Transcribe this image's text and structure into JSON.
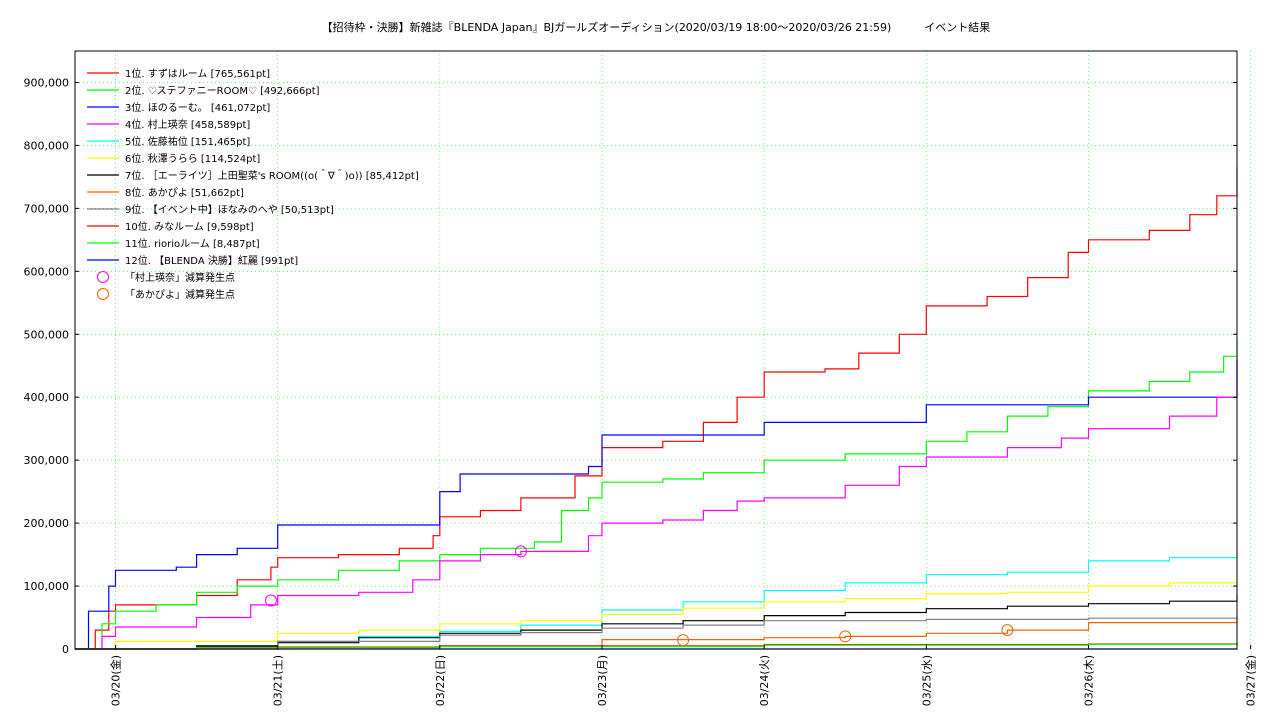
{
  "chart_data": {
    "type": "line",
    "title": "【招待枠・決勝】新雑誌『BLENDA Japan』BJガールズオーディション(2020/03/19 18:00〜2020/03/26 21:59)　　　イベント結果",
    "xlabel": "",
    "ylabel": "",
    "ylim": [
      0,
      950000
    ],
    "yticks": [
      0,
      100000,
      200000,
      300000,
      400000,
      500000,
      600000,
      700000,
      800000,
      900000
    ],
    "ytick_labels": [
      "0",
      "100,000",
      "200,000",
      "300,000",
      "400,000",
      "500,000",
      "600,000",
      "700,000",
      "800,000",
      "900,000"
    ],
    "xlim": [
      "2020-03-19 18:00",
      "2020-03-26 21:59"
    ],
    "xticks": [
      "2020-03-20 00:00",
      "2020-03-21 00:00",
      "2020-03-22 00:00",
      "2020-03-23 00:00",
      "2020-03-24 00:00",
      "2020-03-25 00:00",
      "2020-03-26 00:00",
      "2020-03-27 00:00"
    ],
    "xtick_labels": [
      "03/20(金)",
      "03/21(土)",
      "03/22(日)",
      "03/23(月)",
      "03/24(火)",
      "03/25(水)",
      "03/26(木)",
      "03/27(金)"
    ],
    "grid": true,
    "legend_position": "top-left",
    "series": [
      {
        "name": "1位. すずはルーム [765,561pt]",
        "color": "#ff0000",
        "points": [
          [
            "2020-03-19 18:00",
            0
          ],
          [
            "2020-03-19 21:00",
            30000
          ],
          [
            "2020-03-19 23:00",
            60000
          ],
          [
            "2020-03-20 00:00",
            70000
          ],
          [
            "2020-03-20 06:00",
            70000
          ],
          [
            "2020-03-20 12:00",
            85000
          ],
          [
            "2020-03-20 18:00",
            110000
          ],
          [
            "2020-03-20 23:00",
            130000
          ],
          [
            "2020-03-21 00:00",
            145000
          ],
          [
            "2020-03-21 09:00",
            150000
          ],
          [
            "2020-03-21 18:00",
            160000
          ],
          [
            "2020-03-21 23:00",
            180000
          ],
          [
            "2020-03-22 00:00",
            210000
          ],
          [
            "2020-03-22 06:00",
            220000
          ],
          [
            "2020-03-22 12:00",
            240000
          ],
          [
            "2020-03-22 20:00",
            275000
          ],
          [
            "2020-03-23 00:00",
            320000
          ],
          [
            "2020-03-23 09:00",
            330000
          ],
          [
            "2020-03-23 15:00",
            360000
          ],
          [
            "2020-03-23 20:00",
            400000
          ],
          [
            "2020-03-24 00:00",
            440000
          ],
          [
            "2020-03-24 09:00",
            445000
          ],
          [
            "2020-03-24 14:00",
            470000
          ],
          [
            "2020-03-24 20:00",
            500000
          ],
          [
            "2020-03-25 00:00",
            545000
          ],
          [
            "2020-03-25 09:00",
            560000
          ],
          [
            "2020-03-25 15:00",
            590000
          ],
          [
            "2020-03-25 21:00",
            630000
          ],
          [
            "2020-03-26 00:00",
            650000
          ],
          [
            "2020-03-26 09:00",
            665000
          ],
          [
            "2020-03-26 15:00",
            690000
          ],
          [
            "2020-03-26 19:00",
            720000
          ],
          [
            "2020-03-26 21:59",
            765561
          ]
        ]
      },
      {
        "name": "2位. ♡ステファニーROOM♡ [492,666pt]",
        "color": "#00ff00",
        "points": [
          [
            "2020-03-19 18:00",
            0
          ],
          [
            "2020-03-19 22:00",
            40000
          ],
          [
            "2020-03-20 00:00",
            60000
          ],
          [
            "2020-03-20 06:00",
            70000
          ],
          [
            "2020-03-20 12:00",
            90000
          ],
          [
            "2020-03-20 18:00",
            100000
          ],
          [
            "2020-03-21 00:00",
            110000
          ],
          [
            "2020-03-21 09:00",
            125000
          ],
          [
            "2020-03-21 18:00",
            140000
          ],
          [
            "2020-03-22 00:00",
            150000
          ],
          [
            "2020-03-22 06:00",
            160000
          ],
          [
            "2020-03-22 14:00",
            170000
          ],
          [
            "2020-03-22 18:00",
            220000
          ],
          [
            "2020-03-22 22:00",
            240000
          ],
          [
            "2020-03-23 00:00",
            265000
          ],
          [
            "2020-03-23 09:00",
            270000
          ],
          [
            "2020-03-23 15:00",
            280000
          ],
          [
            "2020-03-24 00:00",
            300000
          ],
          [
            "2020-03-24 12:00",
            310000
          ],
          [
            "2020-03-25 00:00",
            330000
          ],
          [
            "2020-03-25 06:00",
            345000
          ],
          [
            "2020-03-25 12:00",
            370000
          ],
          [
            "2020-03-25 18:00",
            385000
          ],
          [
            "2020-03-26 00:00",
            410000
          ],
          [
            "2020-03-26 09:00",
            425000
          ],
          [
            "2020-03-26 15:00",
            440000
          ],
          [
            "2020-03-26 20:00",
            465000
          ],
          [
            "2020-03-26 21:59",
            492666
          ]
        ]
      },
      {
        "name": "3位. ほのるーむ。 [461,072pt]",
        "color": "#0000ff",
        "points": [
          [
            "2020-03-19 18:00",
            0
          ],
          [
            "2020-03-19 20:00",
            60000
          ],
          [
            "2020-03-19 23:00",
            100000
          ],
          [
            "2020-03-20 00:00",
            125000
          ],
          [
            "2020-03-20 09:00",
            130000
          ],
          [
            "2020-03-20 12:00",
            150000
          ],
          [
            "2020-03-20 18:00",
            160000
          ],
          [
            "2020-03-21 00:00",
            197000
          ],
          [
            "2020-03-21 20:00",
            197000
          ],
          [
            "2020-03-22 00:00",
            250000
          ],
          [
            "2020-03-22 03:00",
            278000
          ],
          [
            "2020-03-22 22:00",
            290000
          ],
          [
            "2020-03-23 00:00",
            340000
          ],
          [
            "2020-03-23 20:00",
            340000
          ],
          [
            "2020-03-24 00:00",
            360000
          ],
          [
            "2020-03-24 20:00",
            360000
          ],
          [
            "2020-03-25 00:00",
            388000
          ],
          [
            "2020-03-25 22:00",
            388000
          ],
          [
            "2020-03-26 00:00",
            400000
          ],
          [
            "2020-03-26 21:00",
            400000
          ],
          [
            "2020-03-26 21:59",
            461072
          ]
        ]
      },
      {
        "name": "4位. 村上瑛奈 [458,589pt]",
        "color": "#ff00ff",
        "points": [
          [
            "2020-03-19 18:00",
            0
          ],
          [
            "2020-03-19 22:00",
            20000
          ],
          [
            "2020-03-20 00:00",
            35000
          ],
          [
            "2020-03-20 12:00",
            50000
          ],
          [
            "2020-03-20 20:00",
            70000
          ],
          [
            "2020-03-21 00:00",
            85000
          ],
          [
            "2020-03-21 12:00",
            90000
          ],
          [
            "2020-03-21 20:00",
            110000
          ],
          [
            "2020-03-22 00:00",
            140000
          ],
          [
            "2020-03-22 06:00",
            150000
          ],
          [
            "2020-03-22 12:00",
            155000
          ],
          [
            "2020-03-22 22:00",
            180000
          ],
          [
            "2020-03-23 00:00",
            200000
          ],
          [
            "2020-03-23 09:00",
            205000
          ],
          [
            "2020-03-23 15:00",
            220000
          ],
          [
            "2020-03-23 20:00",
            235000
          ],
          [
            "2020-03-24 00:00",
            240000
          ],
          [
            "2020-03-24 12:00",
            260000
          ],
          [
            "2020-03-24 20:00",
            290000
          ],
          [
            "2020-03-25 00:00",
            305000
          ],
          [
            "2020-03-25 12:00",
            320000
          ],
          [
            "2020-03-25 20:00",
            335000
          ],
          [
            "2020-03-26 00:00",
            350000
          ],
          [
            "2020-03-26 12:00",
            370000
          ],
          [
            "2020-03-26 19:00",
            400000
          ],
          [
            "2020-03-26 21:59",
            458589
          ]
        ]
      },
      {
        "name": "5位. 佐藤祐位 [151,465pt]",
        "color": "#00ffff",
        "points": [
          [
            "2020-03-19 18:00",
            0
          ],
          [
            "2020-03-20 12:00",
            5000
          ],
          [
            "2020-03-21 00:00",
            12000
          ],
          [
            "2020-03-21 12:00",
            20000
          ],
          [
            "2020-03-22 00:00",
            28000
          ],
          [
            "2020-03-22 12:00",
            38000
          ],
          [
            "2020-03-23 00:00",
            62000
          ],
          [
            "2020-03-23 12:00",
            75000
          ],
          [
            "2020-03-24 00:00",
            93000
          ],
          [
            "2020-03-24 12:00",
            105000
          ],
          [
            "2020-03-25 00:00",
            118000
          ],
          [
            "2020-03-25 12:00",
            122000
          ],
          [
            "2020-03-26 00:00",
            140000
          ],
          [
            "2020-03-26 12:00",
            145000
          ],
          [
            "2020-03-26 21:59",
            151465
          ]
        ]
      },
      {
        "name": "6位. 秋澤うらら [114,524pt]",
        "color": "#ffff00",
        "points": [
          [
            "2020-03-19 18:00",
            0
          ],
          [
            "2020-03-20 00:00",
            12000
          ],
          [
            "2020-03-21 00:00",
            25000
          ],
          [
            "2020-03-21 12:00",
            30000
          ],
          [
            "2020-03-22 00:00",
            40000
          ],
          [
            "2020-03-22 12:00",
            45000
          ],
          [
            "2020-03-23 00:00",
            55000
          ],
          [
            "2020-03-23 12:00",
            65000
          ],
          [
            "2020-03-24 00:00",
            75000
          ],
          [
            "2020-03-24 12:00",
            80000
          ],
          [
            "2020-03-25 00:00",
            88000
          ],
          [
            "2020-03-25 12:00",
            90000
          ],
          [
            "2020-03-26 00:00",
            100000
          ],
          [
            "2020-03-26 12:00",
            105000
          ],
          [
            "2020-03-26 21:59",
            114524
          ]
        ]
      },
      {
        "name": "7位. ［エーライツ］上田聖菜's ROOM((o(＾∇＾)o)) [85,412pt]",
        "color": "#000000",
        "points": [
          [
            "2020-03-19 18:00",
            0
          ],
          [
            "2020-03-20 12:00",
            5000
          ],
          [
            "2020-03-21 00:00",
            10000
          ],
          [
            "2020-03-21 12:00",
            18000
          ],
          [
            "2020-03-22 00:00",
            25000
          ],
          [
            "2020-03-22 12:00",
            30000
          ],
          [
            "2020-03-23 00:00",
            40000
          ],
          [
            "2020-03-23 12:00",
            45000
          ],
          [
            "2020-03-24 00:00",
            53000
          ],
          [
            "2020-03-24 12:00",
            58000
          ],
          [
            "2020-03-25 00:00",
            64000
          ],
          [
            "2020-03-25 12:00",
            68000
          ],
          [
            "2020-03-26 00:00",
            72000
          ],
          [
            "2020-03-26 12:00",
            76000
          ],
          [
            "2020-03-26 21:59",
            85412
          ]
        ]
      },
      {
        "name": "8位. あかぴよ [51,662pt]",
        "color": "#ff6000",
        "points": [
          [
            "2020-03-19 18:00",
            0
          ],
          [
            "2020-03-21 00:00",
            3000
          ],
          [
            "2020-03-22 00:00",
            5000
          ],
          [
            "2020-03-22 20:00",
            5000
          ],
          [
            "2020-03-23 00:00",
            15000
          ],
          [
            "2020-03-23 12:00",
            15000
          ],
          [
            "2020-03-24 00:00",
            18000
          ],
          [
            "2020-03-24 12:00",
            20000
          ],
          [
            "2020-03-25 00:00",
            25000
          ],
          [
            "2020-03-25 12:00",
            30000
          ],
          [
            "2020-03-26 00:00",
            42000
          ],
          [
            "2020-03-26 21:59",
            51662
          ]
        ]
      },
      {
        "name": "9位. 【イベント中】ほなみのへや [50,513pt]",
        "color": "#808080",
        "points": [
          [
            "2020-03-19 18:00",
            0
          ],
          [
            "2020-03-21 00:00",
            12000
          ],
          [
            "2020-03-22 00:00",
            22000
          ],
          [
            "2020-03-22 12:00",
            26000
          ],
          [
            "2020-03-23 00:00",
            33000
          ],
          [
            "2020-03-23 12:00",
            38000
          ],
          [
            "2020-03-24 00:00",
            45000
          ],
          [
            "2020-03-25 00:00",
            47000
          ],
          [
            "2020-03-26 00:00",
            49000
          ],
          [
            "2020-03-26 21:59",
            50513
          ]
        ]
      },
      {
        "name": "10位. みなルーム [9,598pt]",
        "color": "#ff0000",
        "points": [
          [
            "2020-03-19 18:00",
            0
          ],
          [
            "2020-03-20 12:00",
            3000
          ],
          [
            "2020-03-22 00:00",
            5000
          ],
          [
            "2020-03-24 00:00",
            7000
          ],
          [
            "2020-03-26 00:00",
            8000
          ],
          [
            "2020-03-26 21:59",
            9598
          ]
        ]
      },
      {
        "name": "11位. riorioルーム [8,487pt]",
        "color": "#00ff00",
        "points": [
          [
            "2020-03-19 18:00",
            0
          ],
          [
            "2020-03-20 12:00",
            2000
          ],
          [
            "2020-03-22 00:00",
            4000
          ],
          [
            "2020-03-24 00:00",
            6000
          ],
          [
            "2020-03-26 00:00",
            7500
          ],
          [
            "2020-03-26 21:59",
            8487
          ]
        ]
      },
      {
        "name": "12位. 【BLENDA 決勝】紅麗 [991pt]",
        "color": "#0000ff",
        "points": [
          [
            "2020-03-19 18:00",
            0
          ],
          [
            "2020-03-26 21:59",
            991
          ]
        ]
      }
    ],
    "markers": [
      {
        "name": "「村上瑛奈」減算発生点",
        "color": "#ff00ff",
        "points": [
          [
            "2020-03-20 23:00",
            77000
          ],
          [
            "2020-03-22 12:00",
            155000
          ]
        ]
      },
      {
        "name": "「あかぴよ」減算発生点",
        "color": "#ff6000",
        "points": [
          [
            "2020-03-23 12:00",
            14000
          ],
          [
            "2020-03-24 12:00",
            20000
          ],
          [
            "2020-03-25 12:00",
            30000
          ]
        ]
      }
    ]
  }
}
